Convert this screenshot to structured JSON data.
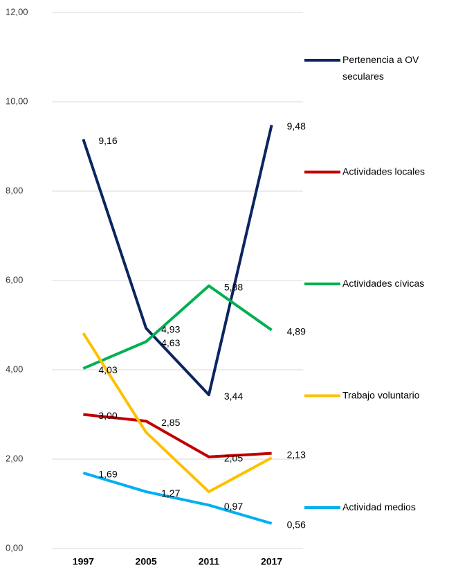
{
  "chart_data": {
    "type": "line",
    "categories": [
      "1997",
      "2005",
      "2011",
      "2017"
    ],
    "ylim": [
      0,
      12
    ],
    "yticks": [
      {
        "value": 0,
        "label": "0,00"
      },
      {
        "value": 2,
        "label": "2,00"
      },
      {
        "value": 4,
        "label": "4,00"
      },
      {
        "value": 6,
        "label": "6,00"
      },
      {
        "value": 8,
        "label": "8,00"
      },
      {
        "value": 10,
        "label": "10,00"
      },
      {
        "value": 12,
        "label": "12,00"
      }
    ],
    "grid": true,
    "legend": "right",
    "series": [
      {
        "name": "Pertenencia a OV seculares",
        "color": "#0c2461",
        "values": [
          9.16,
          4.93,
          3.44,
          9.48
        ],
        "value_labels": [
          "9,16",
          "4,93",
          "3,44",
          "9,48"
        ]
      },
      {
        "name": "Actividades locales",
        "color": "#c00000",
        "values": [
          3.0,
          2.85,
          2.05,
          2.13
        ],
        "value_labels": [
          "3,00",
          "2,85",
          "2,05",
          "2,13"
        ]
      },
      {
        "name": "Actividades cívicas",
        "color": "#00b050",
        "values": [
          4.03,
          4.63,
          5.88,
          4.89
        ],
        "value_labels": [
          "4,03",
          "4,63",
          "5,88",
          "4,89"
        ]
      },
      {
        "name": "Trabajo voluntario",
        "color": "#ffc000",
        "values": [
          4.82,
          2.6,
          1.27,
          2.03
        ]
      },
      {
        "name": "Actividad medios",
        "color": "#00b0f0",
        "values": [
          1.69,
          1.27,
          0.97,
          0.56
        ],
        "value_labels": [
          "1,69",
          "1,27",
          "0,97",
          "0,56"
        ]
      }
    ]
  }
}
